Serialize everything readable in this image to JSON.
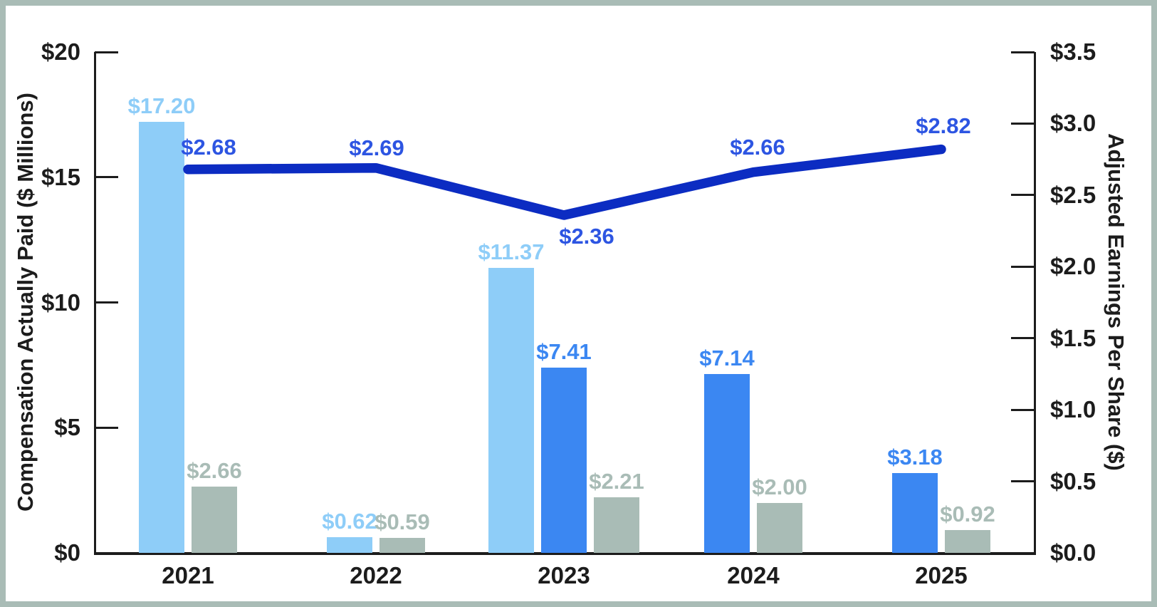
{
  "chart_data": {
    "type": "combo_bar_line",
    "categories": [
      "2021",
      "2022",
      "2023",
      "2024",
      "2025"
    ],
    "bar_series": [
      {
        "name": "cap-light-blue",
        "color": "#8ECDF8",
        "values": [
          17.2,
          0.62,
          11.37,
          null,
          null
        ],
        "labels": [
          "$17.20",
          "$0.62",
          "$11.37",
          null,
          null
        ]
      },
      {
        "name": "cap-dark-blue",
        "color": "#3B87F2",
        "values": [
          null,
          null,
          7.41,
          7.14,
          3.18
        ],
        "labels": [
          null,
          null,
          "$7.41",
          "$7.14",
          "$3.18"
        ]
      },
      {
        "name": "cap-gray",
        "color": "#A9BCB6",
        "values": [
          2.66,
          0.59,
          2.21,
          2.0,
          0.92
        ],
        "labels": [
          "$2.66",
          "$0.59",
          "$2.21",
          "$2.00",
          "$0.92"
        ]
      }
    ],
    "line_series": {
      "name": "adjusted-eps",
      "color": "#0C2CC2",
      "label_color": "#2D55E2",
      "values": [
        2.68,
        2.69,
        2.36,
        2.66,
        2.82
      ],
      "labels": [
        "$2.68",
        "$2.69",
        "$2.36",
        "$2.66",
        "$2.82"
      ]
    },
    "left_axis": {
      "title": "Compensation Actually Paid ($ Millions)",
      "range": [
        0,
        20
      ],
      "ticks": [
        "$20",
        "$15",
        "$10",
        "$5",
        "$0"
      ]
    },
    "right_axis": {
      "title": "Adjusted Earnings Per Share ($)",
      "range": [
        0,
        3.5
      ],
      "ticks": [
        "$3.5",
        "$3.0",
        "$2.5",
        "$2.0",
        "$1.5",
        "$1.0",
        "$0.5",
        "$0.0"
      ]
    },
    "grid": false,
    "legend": "none"
  },
  "frame": {
    "border_color": "#A9BCB6",
    "background": "#FFFFFF",
    "axis_color": "#1C1C1C"
  }
}
